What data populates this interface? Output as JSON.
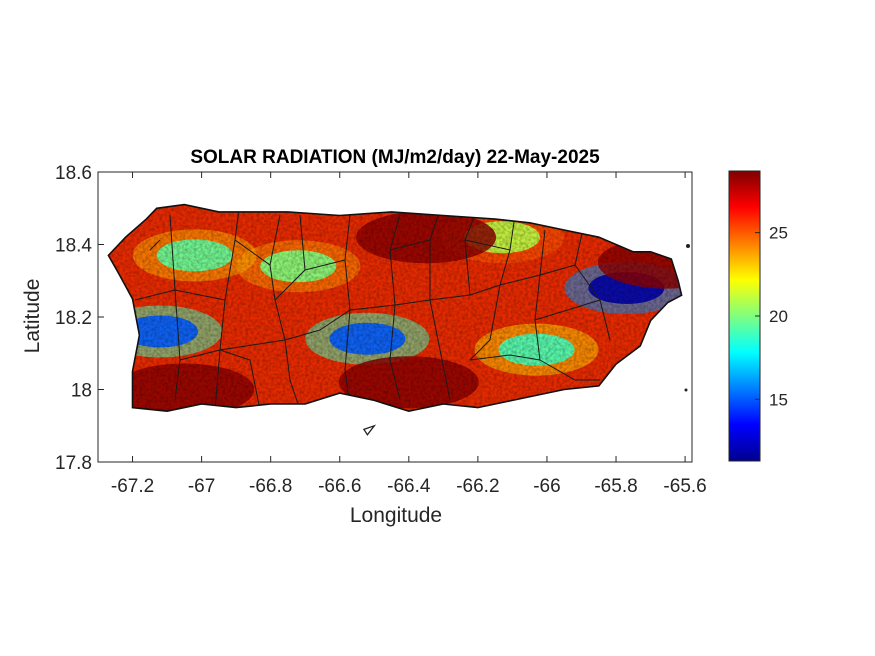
{
  "chart_data": {
    "type": "heatmap",
    "title": "SOLAR RADIATION (MJ/m2/day) 22-May-2025",
    "xlabel": "Longitude",
    "ylabel": "Latitude",
    "xlim": [
      -67.3,
      -65.58
    ],
    "ylim": [
      17.8,
      18.6
    ],
    "xticks": [
      -67.2,
      -67,
      -66.8,
      -66.6,
      -66.4,
      -66.2,
      -66,
      -65.8,
      -65.6
    ],
    "xtick_labels": [
      "-67.2",
      "-67",
      "-66.8",
      "-66.6",
      "-66.4",
      "-66.2",
      "-66",
      "-65.8",
      "-65.6"
    ],
    "yticks": [
      17.8,
      18,
      18.2,
      18.4,
      18.6
    ],
    "ytick_labels": [
      "17.8",
      "18",
      "18.2",
      "18.4",
      "18.6"
    ],
    "colorbar": {
      "colormap": "jet",
      "range": [
        11.3,
        28.7
      ],
      "ticks": [
        15,
        20,
        25
      ],
      "tick_labels": [
        "15",
        "20",
        "25"
      ]
    },
    "grid": false,
    "coastline_lonlat": [
      [
        -67.27,
        18.37
      ],
      [
        -67.22,
        18.42
      ],
      [
        -67.16,
        18.47
      ],
      [
        -67.13,
        18.5
      ],
      [
        -67.05,
        18.51
      ],
      [
        -66.95,
        18.49
      ],
      [
        -66.85,
        18.49
      ],
      [
        -66.75,
        18.49
      ],
      [
        -66.6,
        18.48
      ],
      [
        -66.45,
        18.49
      ],
      [
        -66.3,
        18.48
      ],
      [
        -66.15,
        18.47
      ],
      [
        -66.05,
        18.46
      ],
      [
        -65.95,
        18.44
      ],
      [
        -65.85,
        18.42
      ],
      [
        -65.8,
        18.4
      ],
      [
        -65.75,
        18.38
      ],
      [
        -65.7,
        18.38
      ],
      [
        -65.64,
        18.36
      ],
      [
        -65.62,
        18.3
      ],
      [
        -65.61,
        18.26
      ],
      [
        -65.65,
        18.24
      ],
      [
        -65.7,
        18.19
      ],
      [
        -65.73,
        18.12
      ],
      [
        -65.8,
        18.07
      ],
      [
        -65.85,
        18.01
      ],
      [
        -65.95,
        18.0
      ],
      [
        -66.1,
        17.97
      ],
      [
        -66.2,
        17.95
      ],
      [
        -66.3,
        17.96
      ],
      [
        -66.4,
        17.94
      ],
      [
        -66.5,
        17.97
      ],
      [
        -66.6,
        17.99
      ],
      [
        -66.7,
        17.96
      ],
      [
        -66.8,
        17.96
      ],
      [
        -66.9,
        17.95
      ],
      [
        -67.0,
        17.96
      ],
      [
        -67.1,
        17.94
      ],
      [
        -67.2,
        17.95
      ],
      [
        -67.2,
        18.05
      ],
      [
        -67.18,
        18.15
      ],
      [
        -67.2,
        18.25
      ],
      [
        -67.24,
        18.32
      ]
    ],
    "islet_lonlat": [
      [
        -66.53,
        17.89
      ],
      [
        -66.5,
        17.9
      ],
      [
        -66.52,
        17.875
      ]
    ],
    "radiation_field": [
      {
        "name": "west-coast-min",
        "lon": -67.12,
        "lat": 18.16,
        "value": 15
      },
      {
        "name": "central-south-min",
        "lon": -66.52,
        "lat": 18.14,
        "value": 15
      },
      {
        "name": "east-min",
        "lon": -65.77,
        "lat": 18.28,
        "value": 12
      },
      {
        "name": "northwest-min",
        "lon": -67.02,
        "lat": 18.37,
        "value": 19.5
      },
      {
        "name": "central-min",
        "lon": -66.72,
        "lat": 18.34,
        "value": 20
      },
      {
        "name": "southeast-min",
        "lon": -66.03,
        "lat": 18.11,
        "value": 19
      },
      {
        "name": "north-central-min",
        "lon": -66.13,
        "lat": 18.42,
        "value": 21
      },
      {
        "name": "north-max",
        "lon": -66.35,
        "lat": 18.42,
        "value": 28.5
      },
      {
        "name": "south-max",
        "lon": -66.4,
        "lat": 18.02,
        "value": 28.5
      },
      {
        "name": "southwest-max",
        "lon": -67.05,
        "lat": 18.0,
        "value": 28.5
      },
      {
        "name": "east-max",
        "lon": -65.65,
        "lat": 18.35,
        "value": 28.5
      }
    ]
  }
}
